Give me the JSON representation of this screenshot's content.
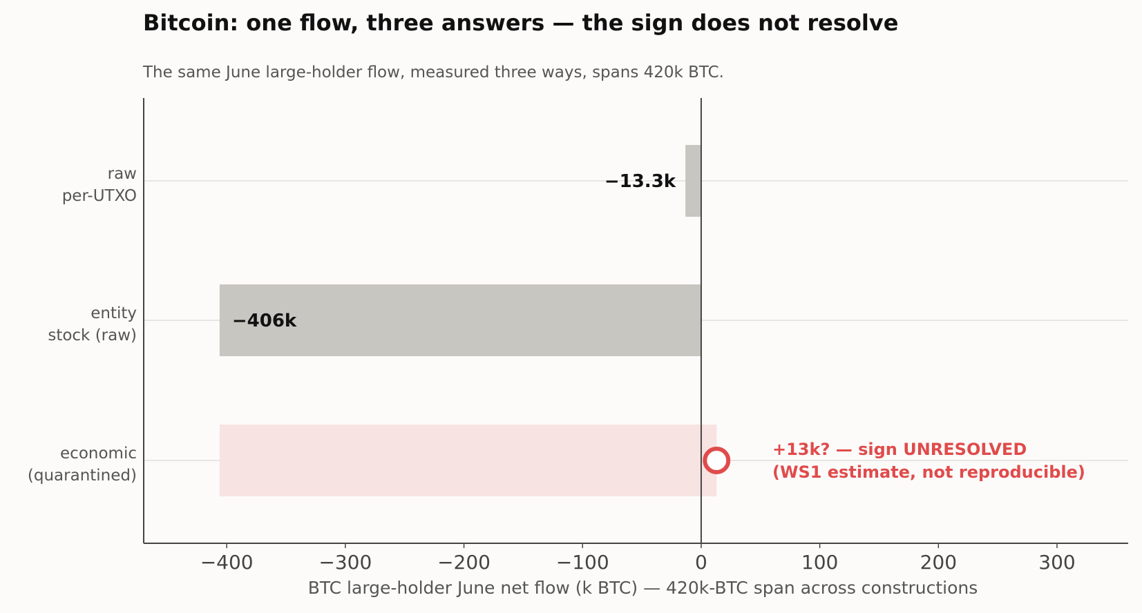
{
  "title": "Bitcoin: one flow, three answers — the sign does not resolve",
  "subtitle": "The same June large-holder flow, measured three ways, spans 420k BTC.",
  "chart_data": {
    "type": "bar",
    "orientation": "horizontal",
    "categories": [
      {
        "lines": [
          "raw",
          "per-UTXO"
        ]
      },
      {
        "lines": [
          "entity",
          "stock (raw)"
        ]
      },
      {
        "lines": [
          "economic",
          "(quarantined)"
        ]
      }
    ],
    "bars": [
      {
        "value": -13.3,
        "label": "−13.3k",
        "color": "#c8c6c1"
      },
      {
        "value": -406,
        "label": "−406k",
        "color": "#c8c6c1"
      },
      {
        "range": [
          -406,
          13
        ],
        "color": "#f7e3e2",
        "marker_value": 13,
        "marker_color": "#e04b4b",
        "annotation": [
          "+13k? — sign UNRESOLVED",
          "(WS1 estimate, not reproducible)"
        ]
      }
    ],
    "xlabel": "BTC large-holder June net flow (k BTC)  —  420k-BTC span across constructions",
    "xlim": [
      -470,
      360
    ],
    "xticks": [
      -400,
      -300,
      -200,
      -100,
      0,
      100,
      200,
      300
    ],
    "xtick_labels": [
      "−400",
      "−300",
      "−200",
      "−100",
      "0",
      "100",
      "200",
      "300"
    ],
    "grid": "horizontal lines at categories",
    "colors": {
      "neutral": "#c8c6c1",
      "highlight": "#e04b4b",
      "band": "#f7e3e2"
    }
  }
}
